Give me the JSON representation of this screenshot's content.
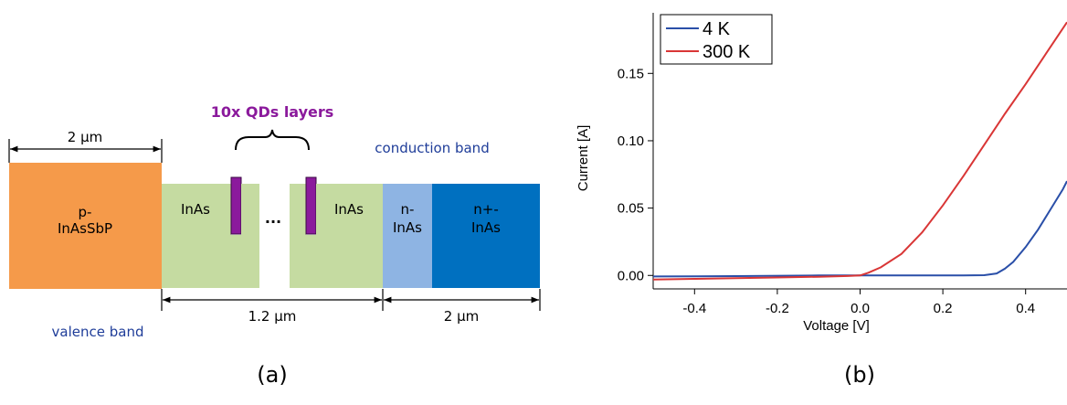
{
  "panel_a": {
    "caption": "(a)",
    "qd_label": "10x QDs layers",
    "conduction_band_label": "conduction band",
    "valence_band_label": "valence band",
    "layers": {
      "p_line1": "p-",
      "p_line2": "InAsSbP",
      "inas_left": "InAs",
      "inas_right": "InAs",
      "ellipsis": "···",
      "n_line1": "n-",
      "n_line2": "InAs",
      "nplus_line1": "n+-",
      "nplus_line2": "InAs"
    },
    "dimensions": {
      "p_width": "2 μm",
      "middle_width": "1.2 μm",
      "n_width": "2 μm"
    },
    "colors": {
      "p_layer": "#f59a4a",
      "inas": "#c5dba1",
      "qd": "#8b1a9c",
      "n_layer": "#8eb4e3",
      "nplus_layer": "#0070c0",
      "qd_label": "#8b1a9c",
      "band_label": "#1f3d99"
    }
  },
  "panel_b": {
    "caption": "(b)",
    "chart_data": {
      "type": "line",
      "xlabel": "Voltage [V]",
      "ylabel": "Current [A]",
      "xlim": [
        -0.5,
        0.5
      ],
      "ylim": [
        -0.01,
        0.195
      ],
      "x_ticks": [
        "-0.4",
        "-0.2",
        "0.0",
        "0.2",
        "0.4"
      ],
      "x_tick_values": [
        -0.4,
        -0.2,
        0.0,
        0.2,
        0.4
      ],
      "y_ticks": [
        "0.00",
        "0.05",
        "0.10",
        "0.15"
      ],
      "y_tick_values": [
        0.0,
        0.05,
        0.1,
        0.15
      ],
      "legend_placement": "top-left",
      "grid": false,
      "series": [
        {
          "name": "4 K",
          "color": "#2a4fa8",
          "points": [
            [
              -0.5,
              -0.0008
            ],
            [
              -0.3,
              -0.0005
            ],
            [
              -0.1,
              0.0
            ],
            [
              0.1,
              0.0
            ],
            [
              0.25,
              0.0
            ],
            [
              0.3,
              0.0002
            ],
            [
              0.33,
              0.0015
            ],
            [
              0.35,
              0.005
            ],
            [
              0.37,
              0.01
            ],
            [
              0.4,
              0.021
            ],
            [
              0.43,
              0.034
            ],
            [
              0.46,
              0.049
            ],
            [
              0.49,
              0.064
            ],
            [
              0.5,
              0.07
            ]
          ]
        },
        {
          "name": "300 K",
          "color": "#d93636",
          "points": [
            [
              -0.5,
              -0.003
            ],
            [
              -0.4,
              -0.0025
            ],
            [
              -0.3,
              -0.002
            ],
            [
              -0.2,
              -0.0015
            ],
            [
              -0.1,
              -0.001
            ],
            [
              -0.03,
              -0.0004
            ],
            [
              0.0,
              0.0
            ],
            [
              0.02,
              0.002
            ],
            [
              0.05,
              0.006
            ],
            [
              0.1,
              0.016
            ],
            [
              0.15,
              0.032
            ],
            [
              0.2,
              0.052
            ],
            [
              0.25,
              0.074
            ],
            [
              0.3,
              0.097
            ],
            [
              0.35,
              0.12
            ],
            [
              0.4,
              0.142
            ],
            [
              0.45,
              0.165
            ],
            [
              0.5,
              0.188
            ]
          ]
        }
      ]
    }
  }
}
